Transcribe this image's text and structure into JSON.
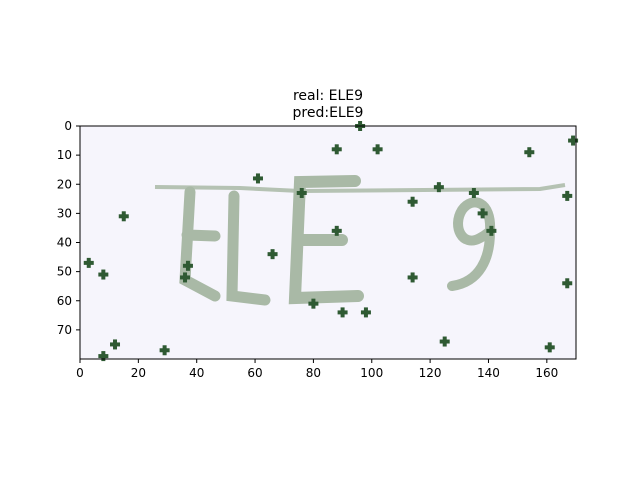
{
  "title": {
    "line1": "real: ELE9",
    "line2": "pred:ELE9"
  },
  "image": {
    "captcha_text": "ELE9",
    "background_color": "#f6f5fc",
    "text_color": "#a9b9a6",
    "noise_color": "#2f5a33"
  },
  "axes": {
    "x_ticks": [
      "0",
      "20",
      "40",
      "60",
      "80",
      "100",
      "120",
      "140",
      "160"
    ],
    "y_ticks": [
      "0",
      "10",
      "20",
      "30",
      "40",
      "50",
      "60",
      "70"
    ],
    "x_range": [
      0,
      170
    ],
    "y_range": [
      0,
      80
    ],
    "y_inverted": true
  }
}
